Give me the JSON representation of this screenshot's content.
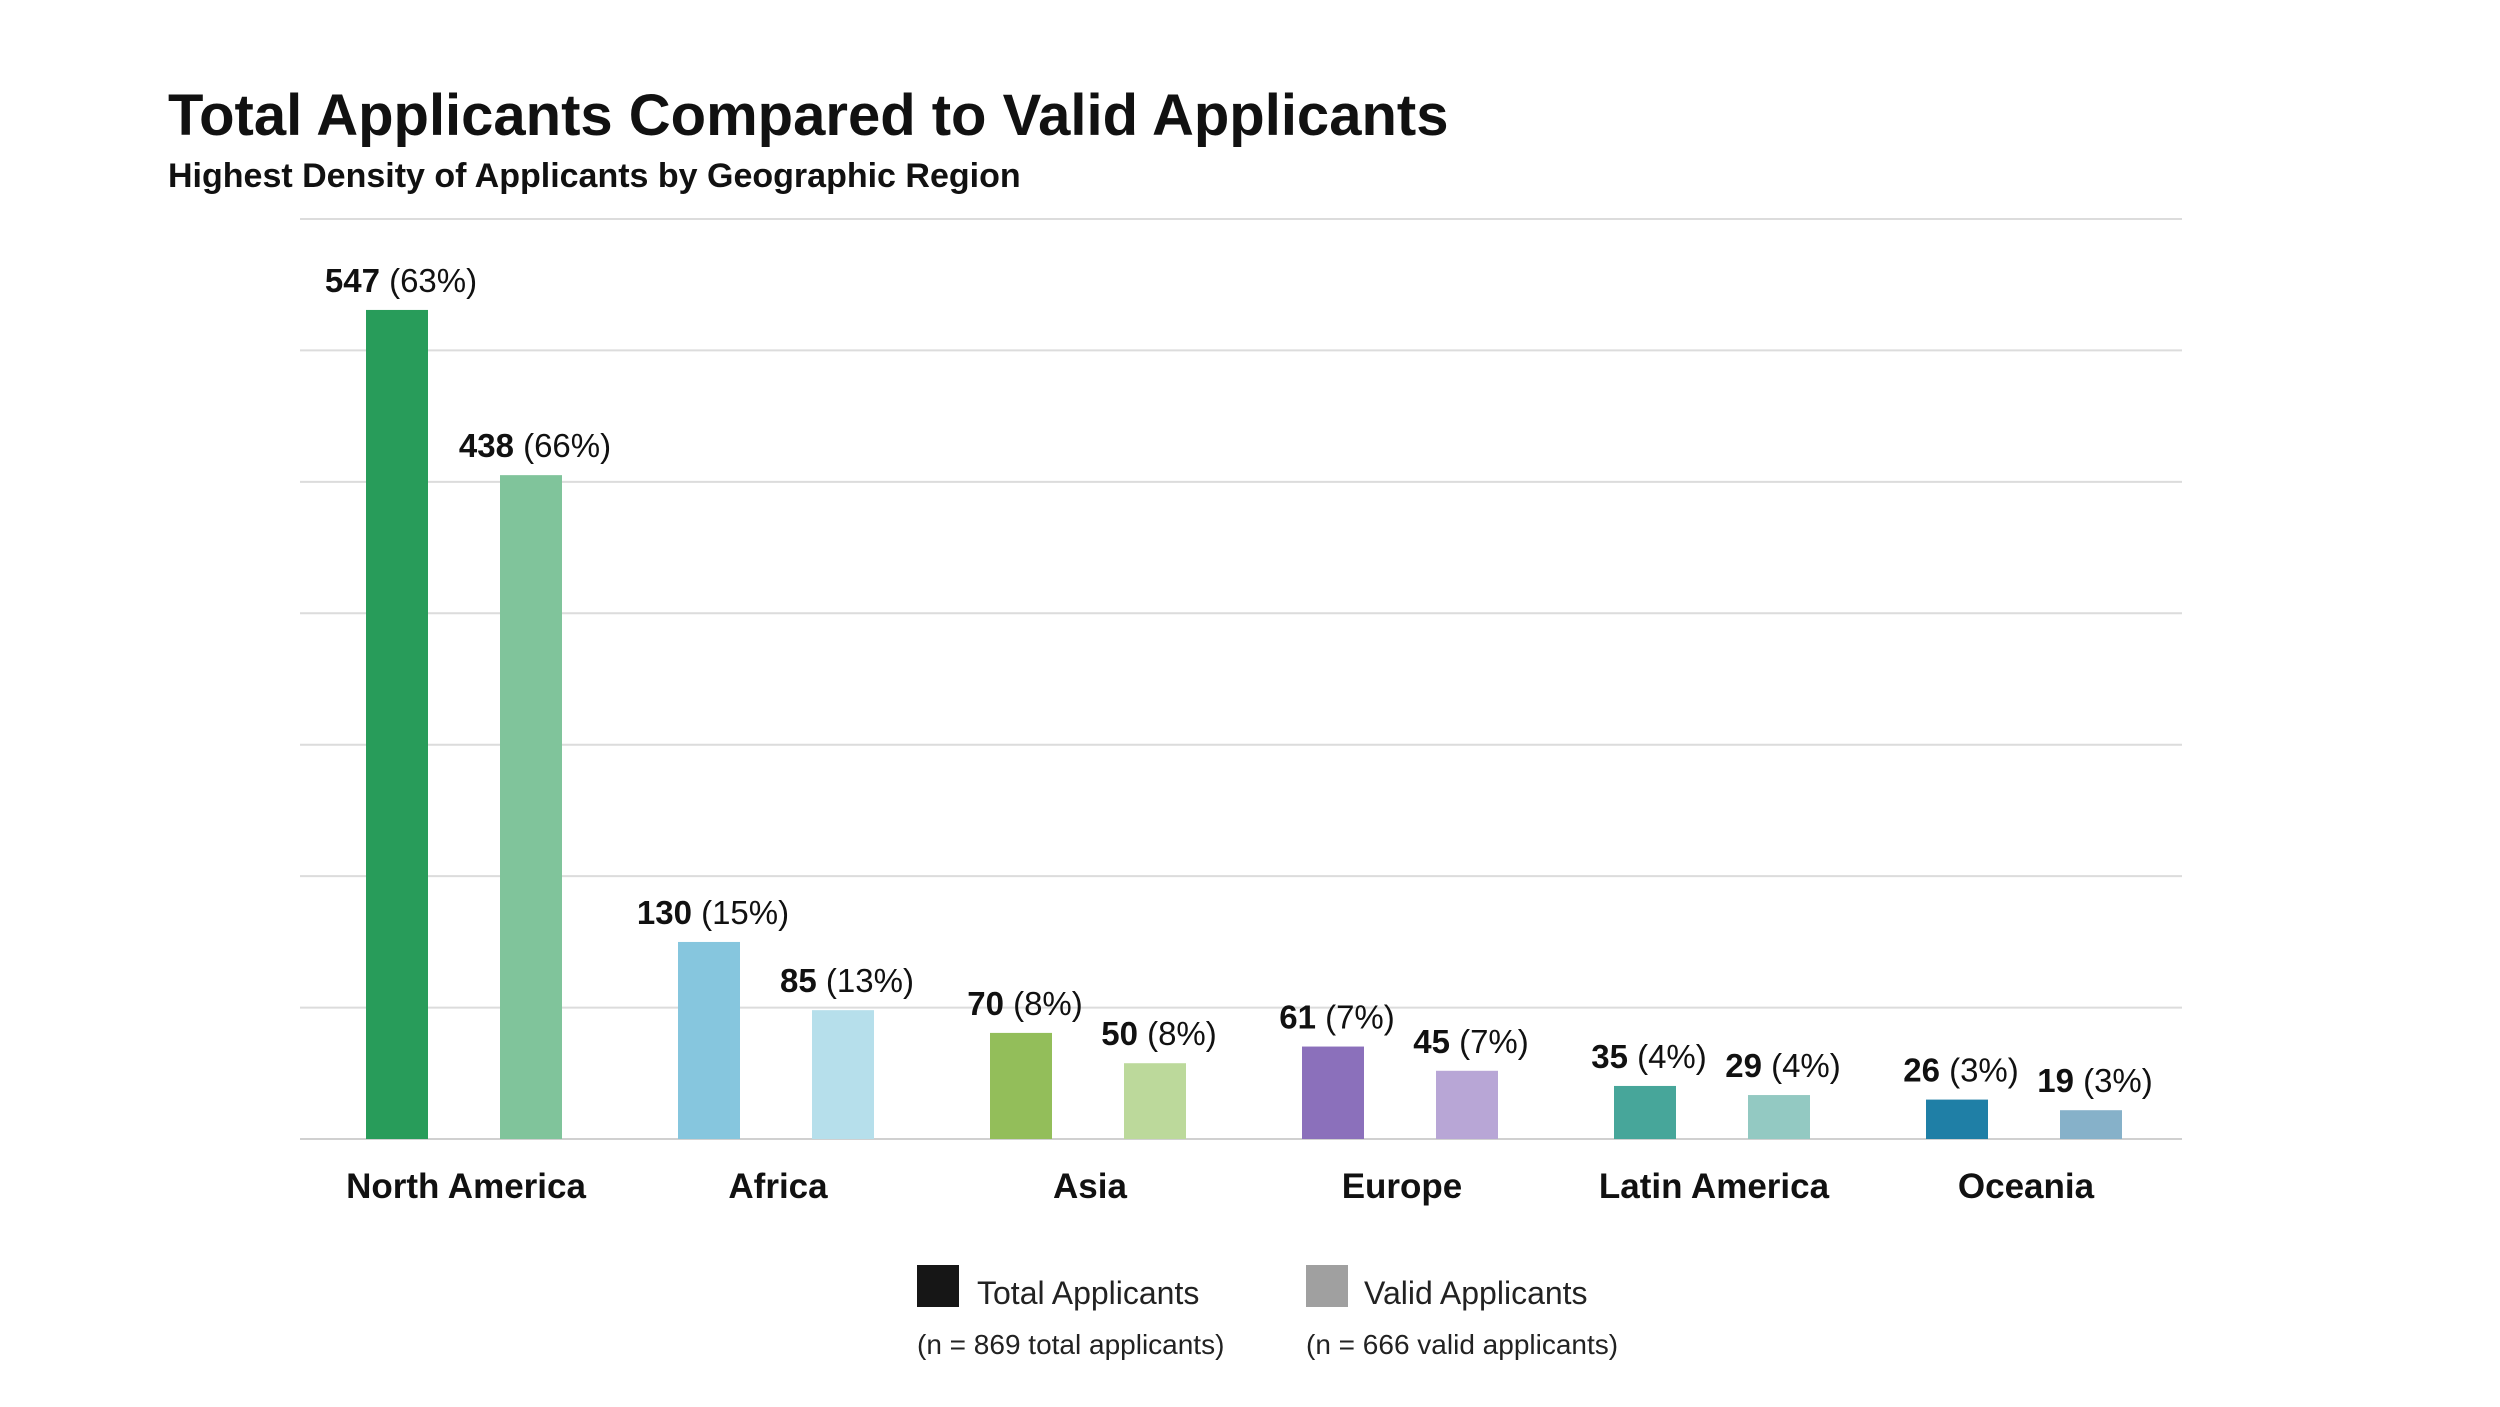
{
  "chart_data": {
    "type": "bar",
    "title": "Total Applicants Compared to Valid Applicants",
    "subtitle": "Highest Density of Applicants by Geographic Region",
    "xlabel": "",
    "ylabel": "",
    "ylim": [
      0,
      607
    ],
    "grid": true,
    "legend_placement": "bottom-center",
    "categories": [
      "North America",
      "Africa",
      "Asia",
      "Europe",
      "Latin America",
      "Oceania"
    ],
    "series": [
      {
        "name": "Total Applicants",
        "note": "(n = 869 total applicants)",
        "legend_color": "#161616",
        "values": [
          547,
          130,
          70,
          61,
          35,
          26
        ],
        "percent_labels": [
          "(63%)",
          "(15%)",
          "(8%)",
          "(7%)",
          "(4%)",
          "(3%)"
        ],
        "colors": [
          "#289c5a",
          "#86c6de",
          "#93be5a",
          "#8b70bb",
          "#47a69a",
          "#1f7fa6"
        ]
      },
      {
        "name": "Valid Applicants",
        "note": "(n = 666 valid applicants)",
        "legend_color": "#a0a0a0",
        "values": [
          438,
          85,
          50,
          45,
          29,
          19
        ],
        "percent_labels": [
          "(66%)",
          "(13%)",
          "(8%)",
          "(7%)",
          "(4%)",
          "(3%)"
        ],
        "colors": [
          "#80c49b",
          "#b6dfeb",
          "#bcd99b",
          "#b8a6d6",
          "#93c9c2",
          "#86b1c9"
        ]
      }
    ]
  }
}
